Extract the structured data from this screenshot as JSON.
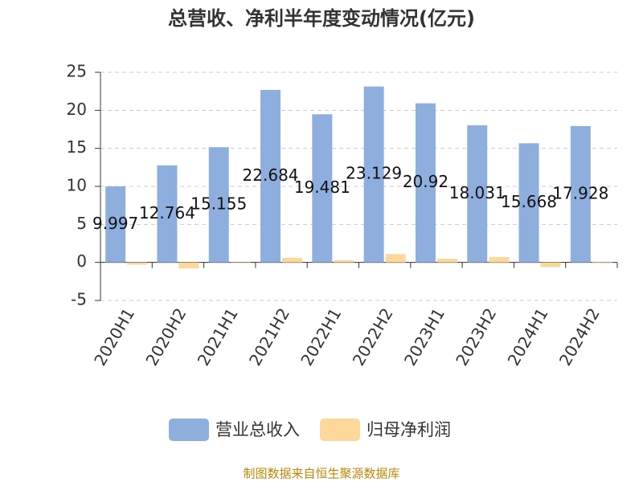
{
  "chart_data": {
    "type": "bar",
    "title": "总营收、净利半年度变动情况(亿元)",
    "categories": [
      "2020H1",
      "2020H2",
      "2021H1",
      "2021H2",
      "2022H1",
      "2022H2",
      "2023H1",
      "2023H2",
      "2024H1",
      "2024H2"
    ],
    "series": [
      {
        "name": "营业总收入",
        "color": "#8eaede",
        "values": [
          9.997,
          12.764,
          15.155,
          22.684,
          19.481,
          23.129,
          20.92,
          18.031,
          15.668,
          17.928
        ]
      },
      {
        "name": "归母净利润",
        "color": "#fdd89a",
        "values": [
          -0.3,
          -0.8,
          -0.1,
          0.6,
          0.3,
          1.1,
          0.5,
          0.7,
          -0.6,
          0.1
        ]
      }
    ],
    "ylim": [
      -5,
      25
    ],
    "yticks": [
      -5,
      0,
      5,
      10,
      15,
      20,
      25
    ],
    "grid": true,
    "legend": "bottom",
    "source": "制图数据来自恒生聚源数据库"
  }
}
